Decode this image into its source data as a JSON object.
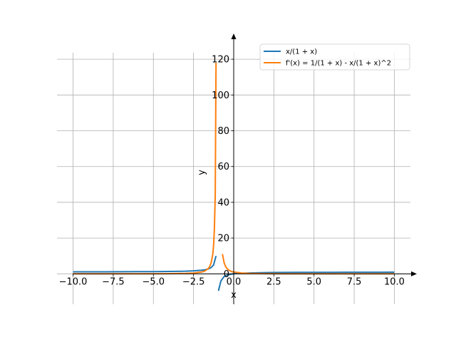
{
  "chart_data": {
    "type": "line",
    "xlabel": "x",
    "ylabel": "y",
    "xlim": [
      -11.0,
      11.0
    ],
    "ylim": [
      -17,
      130
    ],
    "x_ticks": [
      -10.0,
      -7.5,
      -5.0,
      -2.5,
      0.0,
      2.5,
      5.0,
      7.5,
      10.0
    ],
    "x_tick_labels": [
      "−10.0",
      "−7.5",
      "−5.0",
      "−2.5",
      "0.0",
      "2.5",
      "5.0",
      "7.5",
      "10.0"
    ],
    "y_ticks": [
      0,
      20,
      40,
      60,
      80,
      100,
      120
    ],
    "y_tick_labels": [
      "0",
      "20",
      "40",
      "60",
      "80",
      "100",
      "120"
    ],
    "grid": true,
    "legend_position": "top-right",
    "series": [
      {
        "name": "x/(1 + x)",
        "color": "#1f77b4",
        "segments": [
          {
            "x": [
              -10,
              -9,
              -8,
              -7,
              -6,
              -5,
              -4,
              -3,
              -2.5,
              -2,
              -1.8,
              -1.6,
              -1.4,
              -1.25,
              -1.1
            ],
            "y": [
              1.11,
              1.13,
              1.14,
              1.17,
              1.2,
              1.25,
              1.33,
              1.5,
              1.67,
              2.0,
              2.25,
              2.67,
              3.5,
              5.0,
              10.0
            ]
          },
          {
            "x": [
              -0.95,
              -0.8,
              -0.6,
              -0.4,
              -0.2,
              0,
              0.5,
              1,
              2,
              3,
              4,
              5,
              6,
              7,
              8,
              9,
              10
            ],
            "y": [
              -9.5,
              -4.0,
              -1.5,
              -0.67,
              -0.25,
              0,
              0.33,
              0.5,
              0.67,
              0.75,
              0.8,
              0.83,
              0.86,
              0.88,
              0.89,
              0.9,
              0.91
            ]
          }
        ]
      },
      {
        "name": "f'(x) = 1/(1 + x) - x/(1 + x)^2",
        "color": "#ff7f0e",
        "segments": [
          {
            "x": [
              -10,
              -8,
              -6,
              -5,
              -4,
              -3,
              -2.5,
              -2,
              -1.8,
              -1.6,
              -1.5,
              -1.4,
              -1.3,
              -1.25,
              -1.2,
              -1.15,
              -1.1
            ],
            "y": [
              0.01,
              0.02,
              0.04,
              0.06,
              0.11,
              0.25,
              0.44,
              1.0,
              1.56,
              2.78,
              4.0,
              6.25,
              11.1,
              16.0,
              25.0,
              44.4,
              118.0
            ]
          },
          {
            "x": [
              -0.7,
              -0.6,
              -0.5,
              -0.4,
              -0.3,
              -0.2,
              -0.1,
              0,
              0.5,
              1,
              2,
              3,
              4,
              5,
              6,
              7,
              8,
              9,
              10
            ],
            "y": [
              11.1,
              6.25,
              4.0,
              2.78,
              2.04,
              1.56,
              1.23,
              1.0,
              0.44,
              0.25,
              0.11,
              0.06,
              0.04,
              0.03,
              0.02,
              0.02,
              0.01,
              0.01,
              0.01
            ]
          }
        ]
      }
    ]
  }
}
